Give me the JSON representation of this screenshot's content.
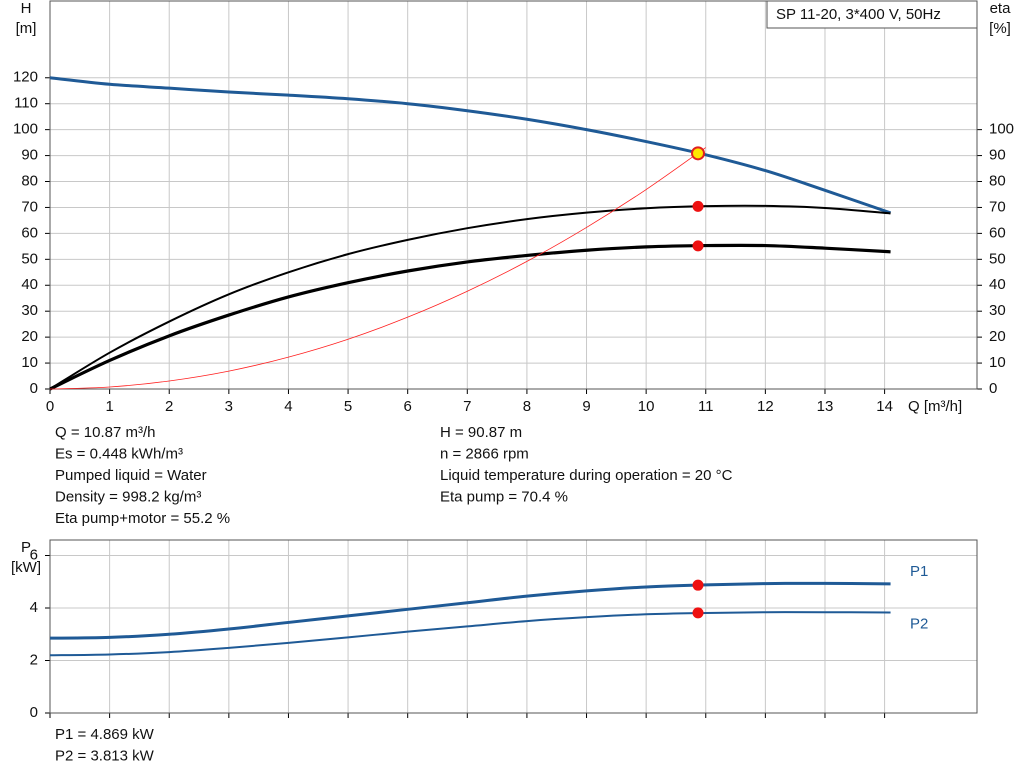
{
  "chart_data": [
    {
      "type": "line",
      "title": "SP 11-20, 3*400 V, 50Hz",
      "x_label": "Q [m³/h]",
      "y_label": "H",
      "y_unit": "[m]",
      "y2_label": "eta",
      "y2_unit": "[%]",
      "xlim": [
        0,
        15.55
      ],
      "xticks": [
        0,
        1,
        2,
        3,
        4,
        5,
        6,
        7,
        8,
        9,
        10,
        11,
        12,
        13,
        14
      ],
      "ylim": [
        0,
        149.6
      ],
      "yticks": [
        0,
        10,
        20,
        30,
        40,
        50,
        60,
        70,
        80,
        90,
        100,
        110,
        120
      ],
      "y2lim": [
        0,
        149.6
      ],
      "y2ticks": [
        0,
        10,
        20,
        30,
        40,
        50,
        60,
        70,
        80,
        90,
        100
      ],
      "grid": true,
      "x": [
        0,
        1,
        2,
        3,
        4,
        5,
        6,
        7,
        8,
        9,
        10,
        11,
        12,
        13,
        14.1
      ],
      "series": [
        {
          "color": "#1f5a96",
          "width": 3,
          "axis": "y",
          "values": [
            120,
            117.5,
            116,
            114.5,
            113.3,
            111.9,
            110,
            107.3,
            104,
            100,
            95.4,
            90.3,
            84.2,
            76.6,
            67.9
          ]
        },
        {
          "color": "#000000",
          "width": 2,
          "axis": "y2",
          "values": [
            0,
            14,
            26,
            36.5,
            45,
            52,
            57.5,
            62,
            65.5,
            68,
            69.7,
            70.5,
            70.6,
            69.8,
            67.7
          ]
        },
        {
          "color": "#000000",
          "width": 3.2,
          "axis": "y2",
          "values": [
            0,
            11,
            20.5,
            28.5,
            35.5,
            41,
            45.5,
            49,
            51.5,
            53.5,
            54.8,
            55.3,
            55.3,
            54.3,
            52.9
          ]
        },
        {
          "color": "#ff2020",
          "width": 0.8,
          "axis": "y",
          "values": [
            0,
            0.77,
            3.1,
            6.9,
            12.3,
            19.2,
            27.7,
            37.7,
            49.2,
            62.3,
            76.9,
            93.1,
            null,
            null,
            null
          ]
        }
      ],
      "operating_point": {
        "x": 10.87,
        "values": [
          90.87,
          70.4,
          55.2
        ],
        "axes": [
          "y",
          "y2",
          "y2"
        ],
        "colors": [
          "#ffe600",
          "#ee1111",
          "#ee1111"
        ]
      },
      "info": [
        [
          "Q = 10.87 m³/h",
          "Es = 0.448 kWh/m³",
          "Pumped liquid = Water",
          "Density = 998.2 kg/m³",
          "Eta pump+motor = 55.2 %"
        ],
        [
          "H = 90.87 m",
          "n = 2866 rpm",
          "Liquid temperature during operation = 20 °C",
          "Eta pump = 70.4 %"
        ]
      ]
    },
    {
      "type": "line",
      "y_label": "P",
      "y_unit": "[kW]",
      "xlim": [
        0,
        15.55
      ],
      "xticks": [
        0,
        1,
        2,
        3,
        4,
        5,
        6,
        7,
        8,
        9,
        10,
        11,
        12,
        13,
        14
      ],
      "xtick_labels": false,
      "ylim": [
        0,
        6.59
      ],
      "yticks": [
        0,
        2,
        4,
        6
      ],
      "grid": true,
      "x": [
        0,
        1,
        2,
        3,
        4,
        5,
        6,
        7,
        8,
        9,
        10,
        11,
        12,
        13,
        14.1
      ],
      "series": [
        {
          "name": "P1",
          "color": "#1f5a96",
          "width": 3,
          "values": [
            2.85,
            2.88,
            3.0,
            3.2,
            3.45,
            3.7,
            3.95,
            4.2,
            4.45,
            4.65,
            4.8,
            4.88,
            4.93,
            4.94,
            4.92
          ]
        },
        {
          "name": "P2",
          "color": "#1f5a96",
          "width": 2,
          "values": [
            2.2,
            2.23,
            2.32,
            2.48,
            2.67,
            2.88,
            3.1,
            3.3,
            3.5,
            3.65,
            3.76,
            3.81,
            3.84,
            3.84,
            3.83
          ]
        }
      ],
      "operating_point": {
        "x": 10.87,
        "values": [
          4.869,
          3.813
        ],
        "axes": [
          "y",
          "y"
        ],
        "colors": [
          "#ee1111",
          "#ee1111"
        ]
      },
      "info": [
        [
          "P1 = 4.869 kW",
          "P2 = 3.813 kW"
        ]
      ]
    }
  ]
}
